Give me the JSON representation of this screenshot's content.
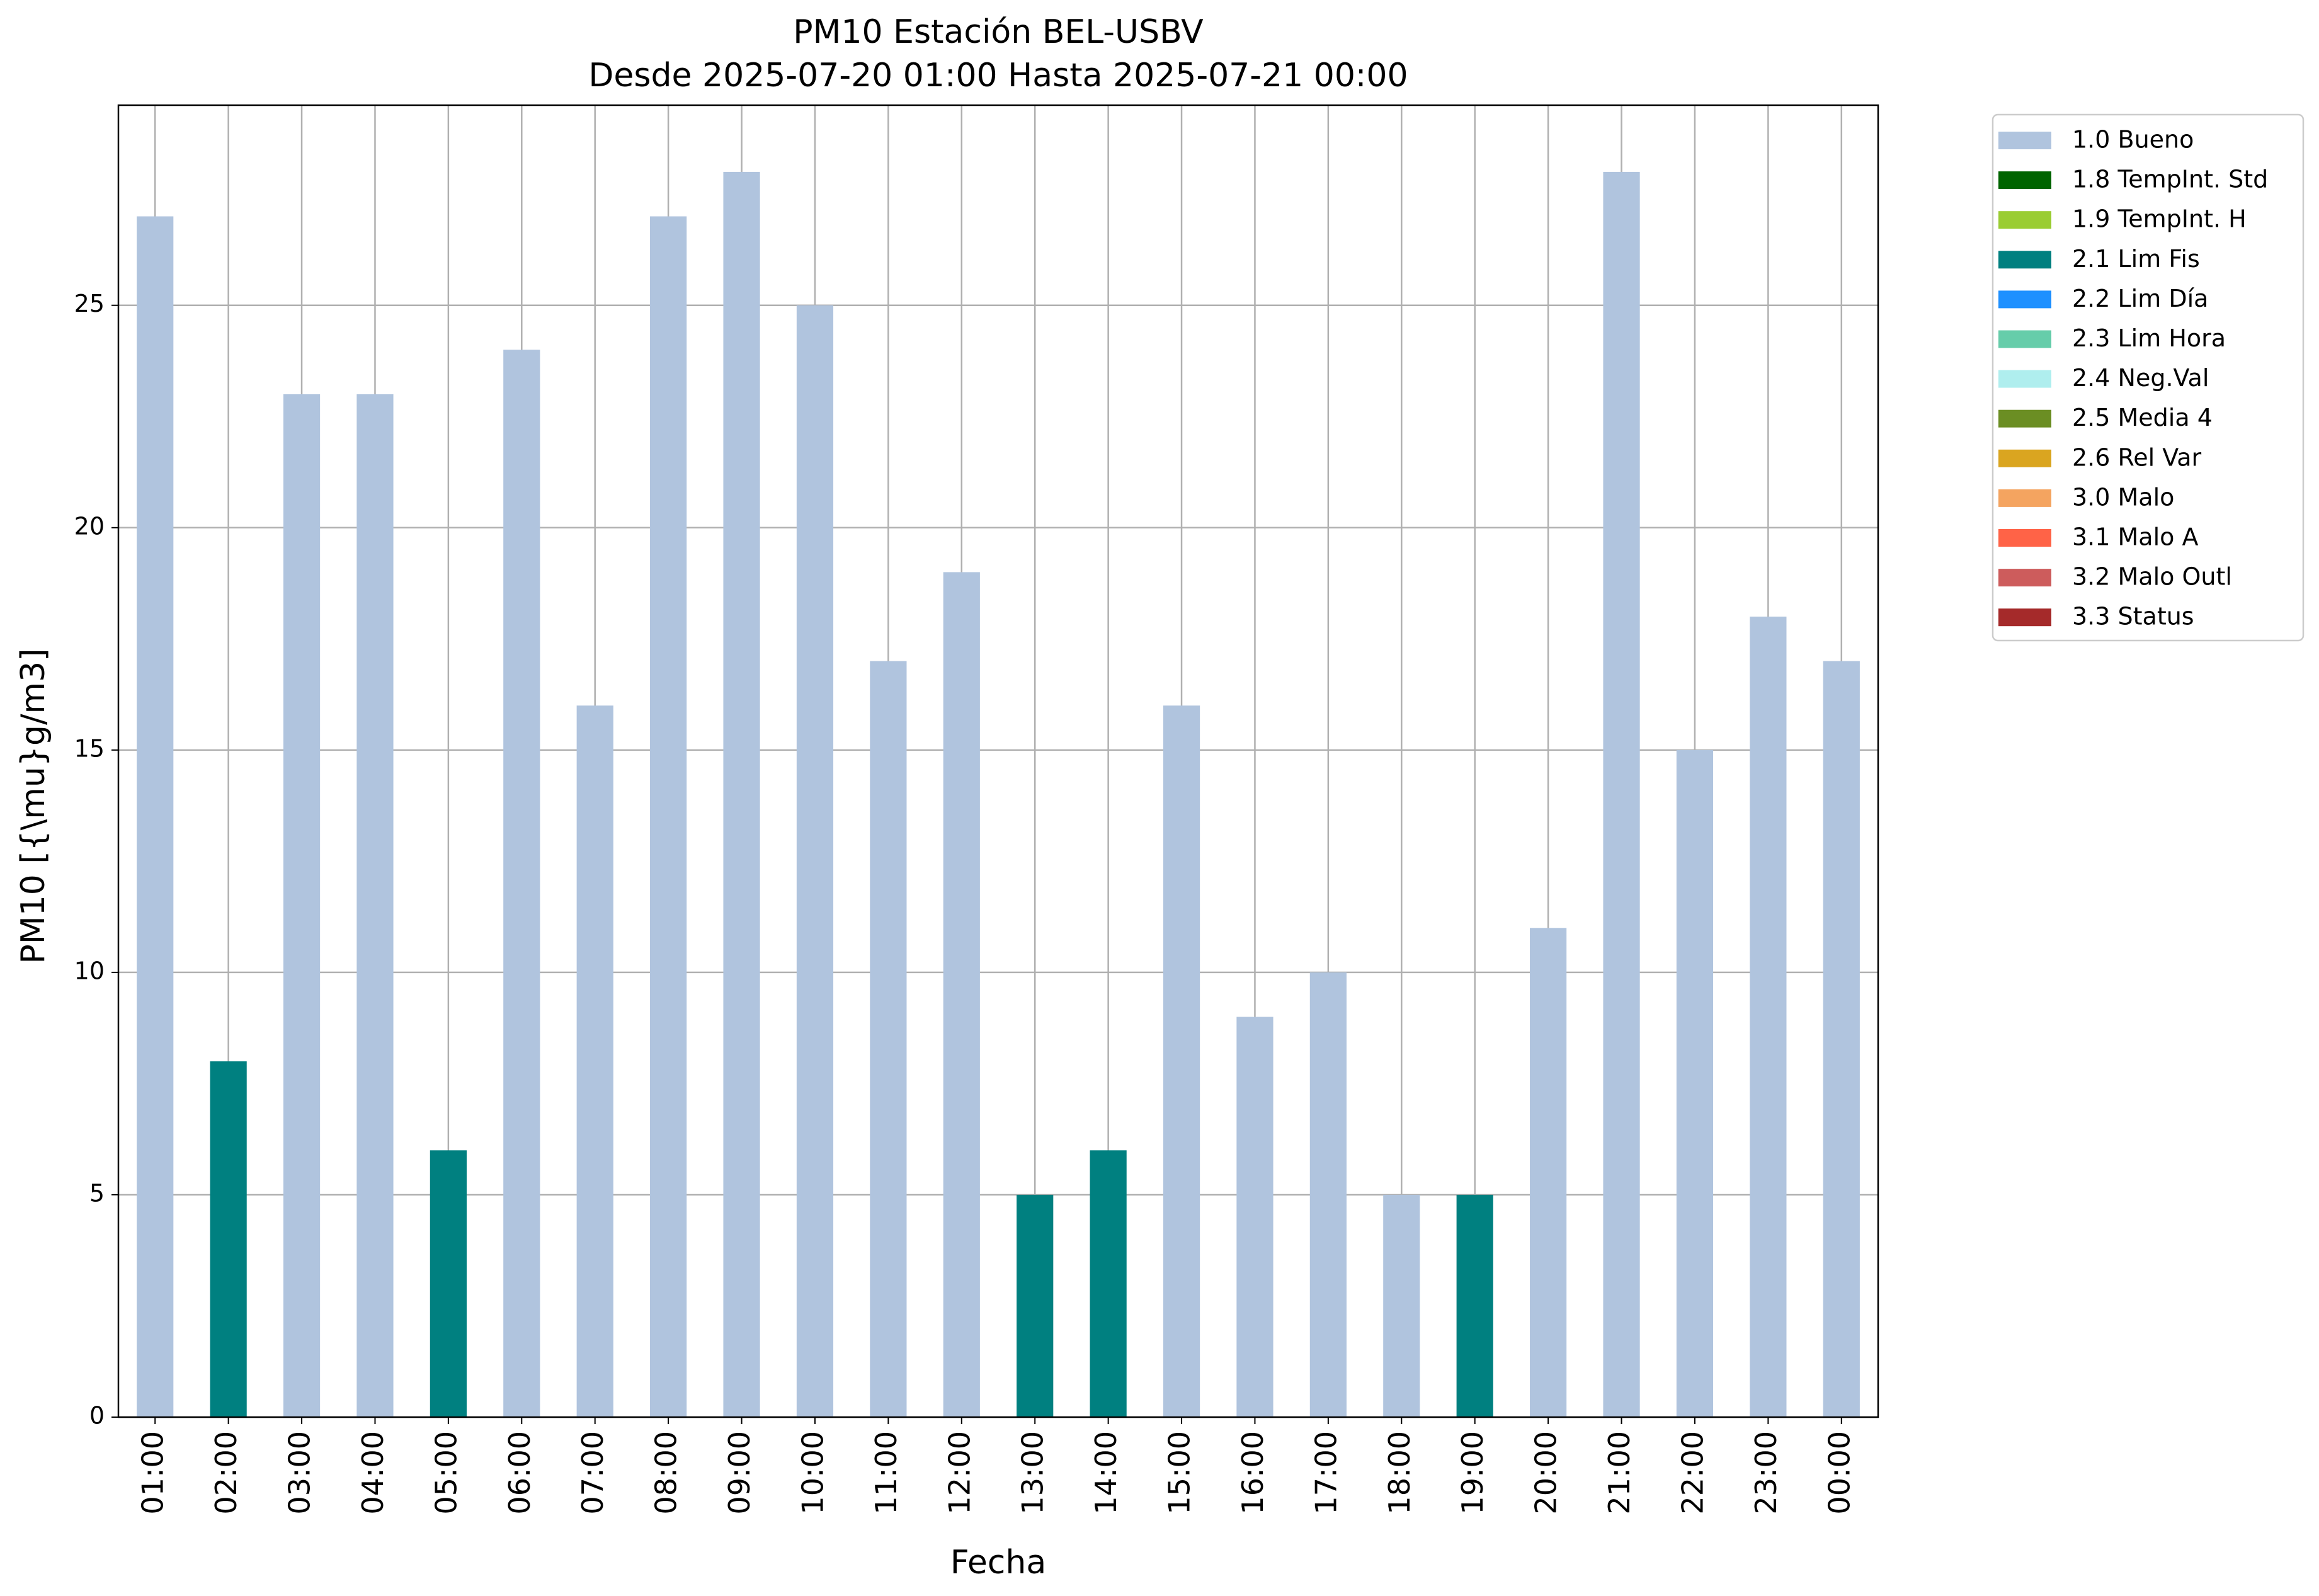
{
  "chart_data": {
    "type": "bar",
    "title": "PM10 Estación BEL-USBV",
    "subtitle": "Desde 2025-07-20 01:00 Hasta 2025-07-21 00:00",
    "xlabel": "Fecha",
    "ylabel": "PM10 [{\\mu}g/m3]",
    "ylim": [
      0,
      29.5
    ],
    "yticks": [
      0,
      5,
      10,
      15,
      20,
      25
    ],
    "grid": true,
    "legend_position": "outside-top-right",
    "categories": [
      "01:00",
      "02:00",
      "03:00",
      "04:00",
      "05:00",
      "06:00",
      "07:00",
      "08:00",
      "09:00",
      "10:00",
      "11:00",
      "12:00",
      "13:00",
      "14:00",
      "15:00",
      "16:00",
      "17:00",
      "18:00",
      "19:00",
      "20:00",
      "21:00",
      "22:00",
      "23:00",
      "00:00"
    ],
    "values": [
      27,
      8,
      23,
      23,
      6,
      24,
      16,
      27,
      28,
      25,
      17,
      19,
      5,
      6,
      16,
      9,
      10,
      5,
      5,
      11,
      28,
      15,
      18,
      17
    ],
    "flags": [
      "1.0 Bueno",
      "2.1 Lim Fis",
      "1.0 Bueno",
      "1.0 Bueno",
      "2.1 Lim Fis",
      "1.0 Bueno",
      "1.0 Bueno",
      "1.0 Bueno",
      "1.0 Bueno",
      "1.0 Bueno",
      "1.0 Bueno",
      "1.0 Bueno",
      "2.1 Lim Fis",
      "2.1 Lim Fis",
      "1.0 Bueno",
      "1.0 Bueno",
      "1.0 Bueno",
      "1.0 Bueno",
      "2.1 Lim Fis",
      "1.0 Bueno",
      "1.0 Bueno",
      "1.0 Bueno",
      "1.0 Bueno",
      "1.0 Bueno"
    ],
    "legend": [
      {
        "name": "1.0 Bueno",
        "color": "#b0c4de"
      },
      {
        "name": "1.8 TempInt. Std",
        "color": "#006400"
      },
      {
        "name": "1.9 TempInt. H",
        "color": "#9acd32"
      },
      {
        "name": "2.1 Lim Fis",
        "color": "#008080"
      },
      {
        "name": "2.2 Lim Día",
        "color": "#1e90ff"
      },
      {
        "name": "2.3 Lim Hora",
        "color": "#66cdaa"
      },
      {
        "name": "2.4 Neg.Val",
        "color": "#afeeee"
      },
      {
        "name": "2.5 Media 4",
        "color": "#6b8e23"
      },
      {
        "name": "2.6 Rel Var",
        "color": "#daa520"
      },
      {
        "name": "3.0 Malo",
        "color": "#f4a460"
      },
      {
        "name": "3.1 Malo A",
        "color": "#ff6347"
      },
      {
        "name": "3.2 Malo Outl",
        "color": "#cd5c5c"
      },
      {
        "name": "3.3 Status",
        "color": "#a52a2a"
      }
    ]
  }
}
